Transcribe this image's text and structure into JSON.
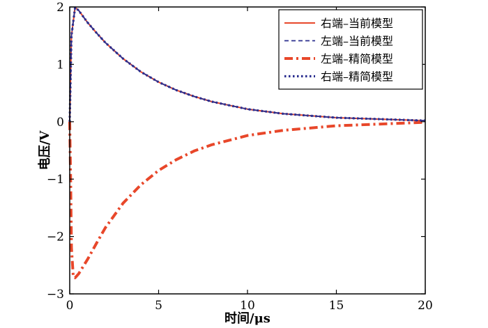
{
  "chart_data": {
    "type": "line",
    "title": "",
    "xlabel": "时间/μs",
    "ylabel": "电压/V",
    "xlim": [
      0,
      20
    ],
    "ylim": [
      -3,
      2
    ],
    "xticks": [
      0,
      5,
      10,
      15,
      20
    ],
    "yticks": [
      -3,
      -2,
      -1,
      0,
      1,
      2
    ],
    "xtick_labels": [
      "0",
      "5",
      "10",
      "15",
      "20"
    ],
    "ytick_labels": [
      "−3",
      "−2",
      "−1",
      "0",
      "1",
      "2"
    ],
    "grid": false,
    "legend_position": "top-right",
    "series": [
      {
        "name": "右端–当前模型",
        "color": "#e8472a",
        "style": "solid",
        "x": [
          0,
          0.1,
          0.3,
          0.5,
          1,
          1.5,
          2,
          3,
          4,
          5,
          6,
          7,
          8,
          10,
          12,
          15,
          20
        ],
        "y": [
          0,
          1.5,
          1.99,
          1.94,
          1.73,
          1.55,
          1.38,
          1.1,
          0.87,
          0.69,
          0.55,
          0.44,
          0.35,
          0.22,
          0.14,
          0.07,
          0.02
        ]
      },
      {
        "name": "左端–当前模型",
        "color": "#2b2f8f",
        "style": "dashed",
        "x": [
          0,
          0.1,
          0.3,
          0.5,
          1,
          1.5,
          2,
          3,
          4,
          5,
          6,
          7,
          8,
          10,
          12,
          15,
          20
        ],
        "y": [
          0,
          1.5,
          1.99,
          1.94,
          1.73,
          1.55,
          1.38,
          1.1,
          0.87,
          0.69,
          0.55,
          0.44,
          0.35,
          0.22,
          0.14,
          0.07,
          0.02
        ]
      },
      {
        "name": "左端–精简模型",
        "color": "#e8472a",
        "style": "dashdot",
        "x": [
          0,
          0.05,
          0.1,
          0.2,
          0.3,
          0.5,
          1,
          1.5,
          2,
          3,
          4,
          5,
          6,
          7,
          8,
          10,
          12,
          15,
          20
        ],
        "y": [
          0,
          -1.0,
          -2.2,
          -2.7,
          -2.72,
          -2.65,
          -2.4,
          -2.12,
          -1.85,
          -1.42,
          -1.1,
          -0.85,
          -0.66,
          -0.51,
          -0.4,
          -0.24,
          -0.15,
          -0.07,
          -0.01
        ]
      },
      {
        "name": "右端–精简模型",
        "color": "#2b2f8f",
        "style": "dotted",
        "x": [
          0,
          0.1,
          0.3,
          0.5,
          1,
          1.5,
          2,
          3,
          4,
          5,
          6,
          7,
          8,
          10,
          12,
          15,
          20
        ],
        "y": [
          0,
          1.5,
          1.99,
          1.94,
          1.73,
          1.55,
          1.38,
          1.1,
          0.87,
          0.69,
          0.55,
          0.44,
          0.35,
          0.22,
          0.14,
          0.07,
          0.02
        ]
      }
    ]
  }
}
